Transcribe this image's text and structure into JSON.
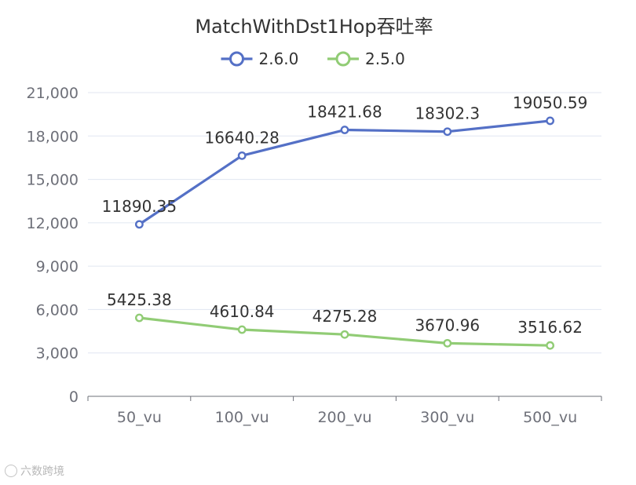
{
  "chart_data": {
    "type": "line",
    "title": "MatchWithDst1Hop吞吐率",
    "categories": [
      "50_vu",
      "100_vu",
      "200_vu",
      "300_vu",
      "500_vu"
    ],
    "series": [
      {
        "name": "2.6.0",
        "color": "#5470c6",
        "values": [
          11890.35,
          16640.28,
          18421.68,
          18302.3,
          19050.59
        ],
        "labels": [
          "11890.35",
          "16640.28",
          "18421.68",
          "18302.3",
          "19050.59"
        ]
      },
      {
        "name": "2.5.0",
        "color": "#91cc75",
        "values": [
          5425.38,
          4610.84,
          4275.28,
          3670.96,
          3516.62
        ],
        "labels": [
          "5425.38",
          "4610.84",
          "4275.28",
          "3670.96",
          "3516.62"
        ]
      }
    ],
    "ylim": [
      0,
      21000
    ],
    "yticks": [
      0,
      3000,
      6000,
      9000,
      12000,
      15000,
      18000,
      21000
    ],
    "ytick_labels": [
      "0",
      "3,000",
      "6,000",
      "9,000",
      "12,000",
      "15,000",
      "18,000",
      "21,000"
    ],
    "xlabel": "",
    "ylabel": "",
    "grid": true,
    "legend_position": "top-center"
  },
  "watermark": {
    "text": "六数跨境"
  }
}
